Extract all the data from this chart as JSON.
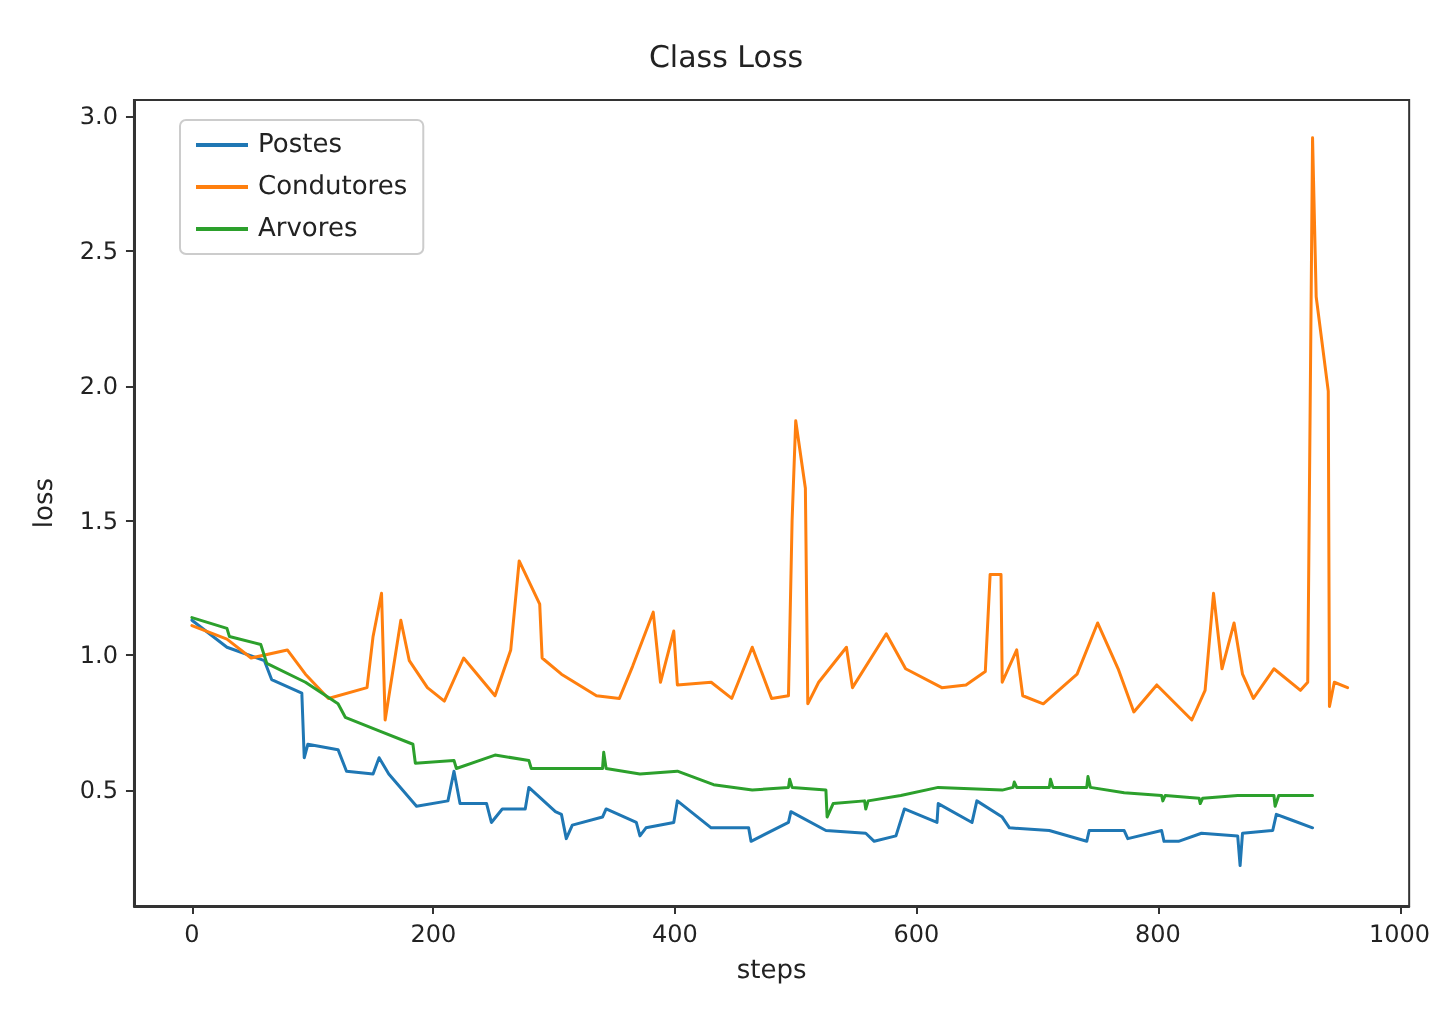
{
  "chart_data": {
    "type": "line",
    "title": "Class Loss",
    "xlabel": "steps",
    "ylabel": "loss",
    "xlim": [
      -48,
      1008
    ],
    "xticks": [
      0,
      200,
      400,
      600,
      800,
      1000
    ],
    "ylim": [
      0.07,
      3.06
    ],
    "yticks": [
      0.5,
      {
        "value": 1,
        "label": "1.0"
      },
      1.5,
      {
        "value": 2,
        "label": "2.0"
      },
      2.5,
      {
        "value": 3,
        "label": "3.0"
      }
    ],
    "grid": false,
    "legend": "top left",
    "marker": "none",
    "line_style": "solid",
    "series": [
      {
        "name": "Postes",
        "color": "#1f77b4",
        "x": [
          0,
          29,
          60,
          66,
          91,
          93,
          96,
          121,
          128,
          150,
          155,
          163,
          186,
          212,
          217,
          222,
          244,
          248,
          257,
          276,
          279,
          301,
          306,
          310,
          315,
          340,
          343,
          368,
          371,
          376,
          399,
          402,
          430,
          461,
          463,
          494,
          496,
          525,
          558,
          565,
          583,
          590,
          617,
          618,
          646,
          650,
          671,
          677,
          710,
          741,
          743,
          772,
          775,
          803,
          805,
          817,
          836,
          866,
          868,
          870,
          895,
          898,
          910,
          928
        ],
        "values": [
          1.13,
          1.03,
          0.98,
          0.91,
          0.86,
          0.62,
          0.67,
          0.65,
          0.57,
          0.56,
          0.62,
          0.56,
          0.44,
          0.46,
          0.57,
          0.45,
          0.45,
          0.38,
          0.43,
          0.43,
          0.51,
          0.42,
          0.41,
          0.32,
          0.37,
          0.4,
          0.43,
          0.38,
          0.33,
          0.36,
          0.38,
          0.46,
          0.36,
          0.36,
          0.31,
          0.38,
          0.42,
          0.35,
          0.34,
          0.31,
          0.33,
          0.43,
          0.38,
          0.45,
          0.38,
          0.46,
          0.4,
          0.36,
          0.35,
          0.31,
          0.35,
          0.35,
          0.32,
          0.35,
          0.31,
          0.31,
          0.34,
          0.33,
          0.22,
          0.34,
          0.35,
          0.41,
          0.39,
          0.36
        ]
      },
      {
        "name": "Condutores",
        "color": "#ff7f0e",
        "x": [
          0,
          29,
          49,
          79,
          94,
          113,
          145,
          150,
          157,
          160,
          173,
          180,
          195,
          209,
          225,
          251,
          264,
          271,
          288,
          290,
          306,
          335,
          354,
          365,
          382,
          388,
          399,
          402,
          430,
          447,
          464,
          480,
          494,
          497,
          500,
          508,
          510,
          519,
          542,
          547,
          575,
          591,
          621,
          641,
          657,
          661,
          670,
          671,
          683,
          688,
          705,
          733,
          750,
          767,
          780,
          799,
          828,
          839,
          846,
          853,
          863,
          870,
          879,
          896,
          918,
          924,
          928,
          931,
          941,
          942,
          946,
          957
        ],
        "values": [
          1.11,
          1.06,
          0.99,
          1.02,
          0.93,
          0.84,
          0.88,
          1.07,
          1.23,
          0.76,
          1.13,
          0.98,
          0.88,
          0.83,
          0.99,
          0.85,
          1.02,
          1.35,
          1.19,
          0.99,
          0.93,
          0.85,
          0.84,
          0.96,
          1.16,
          0.9,
          1.09,
          0.89,
          0.9,
          0.84,
          1.03,
          0.84,
          0.85,
          1.5,
          1.87,
          1.62,
          0.82,
          0.9,
          1.03,
          0.88,
          1.08,
          0.95,
          0.88,
          0.89,
          0.94,
          1.3,
          1.3,
          0.9,
          1.02,
          0.85,
          0.82,
          0.93,
          1.12,
          0.95,
          0.79,
          0.89,
          0.76,
          0.87,
          1.23,
          0.95,
          1.12,
          0.93,
          0.84,
          0.95,
          0.87,
          0.9,
          2.92,
          2.33,
          1.98,
          0.81,
          0.9,
          0.88
        ]
      },
      {
        "name": "Arvores",
        "color": "#2ca02c",
        "x": [
          0,
          29,
          31,
          57,
          62,
          94,
          121,
          127,
          155,
          183,
          185,
          217,
          219,
          251,
          279,
          281,
          301,
          340,
          341,
          343,
          371,
          402,
          432,
          464,
          494,
          495,
          497,
          525,
          526,
          531,
          557,
          558,
          560,
          587,
          618,
          671,
          680,
          681,
          683,
          710,
          711,
          713,
          741,
          742,
          744,
          772,
          803,
          804,
          806,
          834,
          835,
          837,
          866,
          896,
          897,
          900,
          928
        ],
        "values": [
          1.14,
          1.1,
          1.07,
          1.04,
          0.97,
          0.9,
          0.82,
          0.77,
          0.72,
          0.67,
          0.6,
          0.61,
          0.58,
          0.63,
          0.61,
          0.58,
          0.58,
          0.58,
          0.64,
          0.58,
          0.56,
          0.57,
          0.52,
          0.5,
          0.51,
          0.54,
          0.51,
          0.5,
          0.4,
          0.45,
          0.46,
          0.43,
          0.46,
          0.48,
          0.51,
          0.5,
          0.51,
          0.53,
          0.51,
          0.51,
          0.54,
          0.51,
          0.51,
          0.55,
          0.51,
          0.49,
          0.48,
          0.46,
          0.48,
          0.47,
          0.45,
          0.47,
          0.48,
          0.48,
          0.44,
          0.48,
          0.48
        ]
      }
    ]
  }
}
